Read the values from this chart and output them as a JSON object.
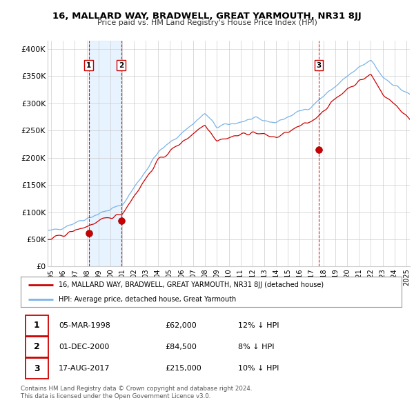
{
  "title1": "16, MALLARD WAY, BRADWELL, GREAT YARMOUTH, NR31 8JJ",
  "title2": "Price paid vs. HM Land Registry's House Price Index (HPI)",
  "ylabel_ticks": [
    "£0",
    "£50K",
    "£100K",
    "£150K",
    "£200K",
    "£250K",
    "£300K",
    "£350K",
    "£400K"
  ],
  "ytick_values": [
    0,
    50000,
    100000,
    150000,
    200000,
    250000,
    300000,
    350000,
    400000
  ],
  "ylim": [
    0,
    415000
  ],
  "transactions": [
    {
      "date_num": 1998.17,
      "price": 62000,
      "label": "1"
    },
    {
      "date_num": 2000.92,
      "price": 84500,
      "label": "2"
    },
    {
      "date_num": 2017.62,
      "price": 215000,
      "label": "3"
    }
  ],
  "shade_start": 1998.17,
  "shade_end": 2000.92,
  "legend_entries": [
    "16, MALLARD WAY, BRADWELL, GREAT YARMOUTH, NR31 8JJ (detached house)",
    "HPI: Average price, detached house, Great Yarmouth"
  ],
  "table_rows": [
    {
      "num": "1",
      "date": "05-MAR-1998",
      "price": "£62,000",
      "hpi": "12% ↓ HPI"
    },
    {
      "num": "2",
      "date": "01-DEC-2000",
      "price": "£84,500",
      "hpi": "8% ↓ HPI"
    },
    {
      "num": "3",
      "date": "17-AUG-2017",
      "price": "£215,000",
      "hpi": "10% ↓ HPI"
    }
  ],
  "footer": "Contains HM Land Registry data © Crown copyright and database right 2024.\nThis data is licensed under the Open Government Licence v3.0.",
  "hpi_color": "#7ab4e8",
  "price_color": "#cc0000",
  "vline_color": "#cc0000",
  "dot_color": "#cc0000",
  "background_color": "#ffffff",
  "grid_color": "#cccccc",
  "shade_color": "#ddeeff",
  "xlim_start": 1994.7,
  "xlim_end": 2025.3
}
